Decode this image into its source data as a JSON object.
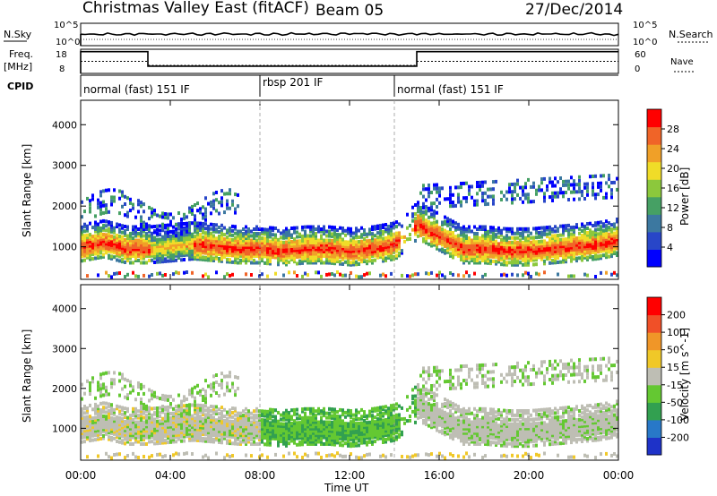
{
  "header": {
    "title": "Christmas Valley East (fitACF)",
    "beam": "Beam 05",
    "date": "27/Dec/2014"
  },
  "status_panels": {
    "nsky_label": "N.Sky",
    "nsearch_label": "N.Search",
    "noise_ticks": [
      "10^5",
      "10^0"
    ],
    "freq_label": "Freq.",
    "freq_unit": "[MHz]",
    "freq_ticks": [
      "18",
      "8"
    ],
    "nave_label": "Nave",
    "nave_ticks": [
      "60",
      "0"
    ],
    "cpid_label": "CPID",
    "cpid_segments": [
      {
        "name": "normal (fast) 151 IF",
        "start": 0,
        "end": 8
      },
      {
        "name": "rbsp 201 IF",
        "start": 8,
        "end": 14
      },
      {
        "name": "normal (fast) 151 IF",
        "start": 14,
        "end": 24
      }
    ],
    "freq_series": {
      "x": [
        0,
        3,
        3,
        15,
        15,
        24
      ],
      "y": [
        17,
        17,
        11,
        11,
        17,
        17
      ]
    },
    "nave_series": {
      "x": [
        0,
        3,
        3,
        15,
        15,
        24
      ],
      "y": [
        30,
        30,
        20,
        20,
        30,
        30
      ]
    }
  },
  "chart_data": [
    {
      "type": "heatmap",
      "name": "power",
      "ylabel": "Slant Range [km]",
      "yticks": [
        1000,
        2000,
        3000,
        4000
      ],
      "ylim": [
        200,
        4600
      ],
      "xlim": [
        0,
        24
      ],
      "colorbar_label": "Power [dB]",
      "colorbar_ticks": [
        "28",
        "24",
        "20",
        "16",
        "12",
        "8",
        "4"
      ],
      "colorbar_colors": [
        "#0000ff",
        "#2846c8",
        "#3c78a0",
        "#46a064",
        "#8cc83c",
        "#f0dc28",
        "#f0a028",
        "#f06428",
        "#ff0000"
      ],
      "echo_band": {
        "x": [
          0,
          1,
          2,
          3,
          4,
          5,
          6,
          7,
          8,
          9,
          10,
          11,
          12,
          13,
          14,
          15,
          16,
          17,
          18,
          19,
          20,
          21,
          22,
          23,
          24
        ],
        "range": [
          1050,
          1150,
          1000,
          1000,
          1050,
          1100,
          1050,
          1000,
          1000,
          950,
          1000,
          1000,
          950,
          1000,
          1100,
          1600,
          1300,
          1000,
          1000,
          950,
          950,
          1000,
          1050,
          1100,
          1200
        ]
      }
    },
    {
      "type": "heatmap",
      "name": "velocity",
      "ylabel": "Slant Range [km]",
      "yticks": [
        1000,
        2000,
        3000,
        4000
      ],
      "ylim": [
        200,
        4600
      ],
      "xlim": [
        0,
        24
      ],
      "xlabel": "Time UT",
      "xticks": [
        "00:00",
        "04:00",
        "08:00",
        "12:00",
        "16:00",
        "20:00",
        "00:00"
      ],
      "colorbar_label": "Velocity [m s^-1]",
      "colorbar_ticks": [
        "200",
        "100",
        "50",
        "15",
        "-15",
        "-50",
        "-100",
        "-200"
      ],
      "colorbar_colors": [
        "#1e32c8",
        "#2878c8",
        "#32a050",
        "#64c832",
        "#bebeb4",
        "#f0c828",
        "#f09628",
        "#f05028",
        "#ff0000"
      ]
    }
  ]
}
